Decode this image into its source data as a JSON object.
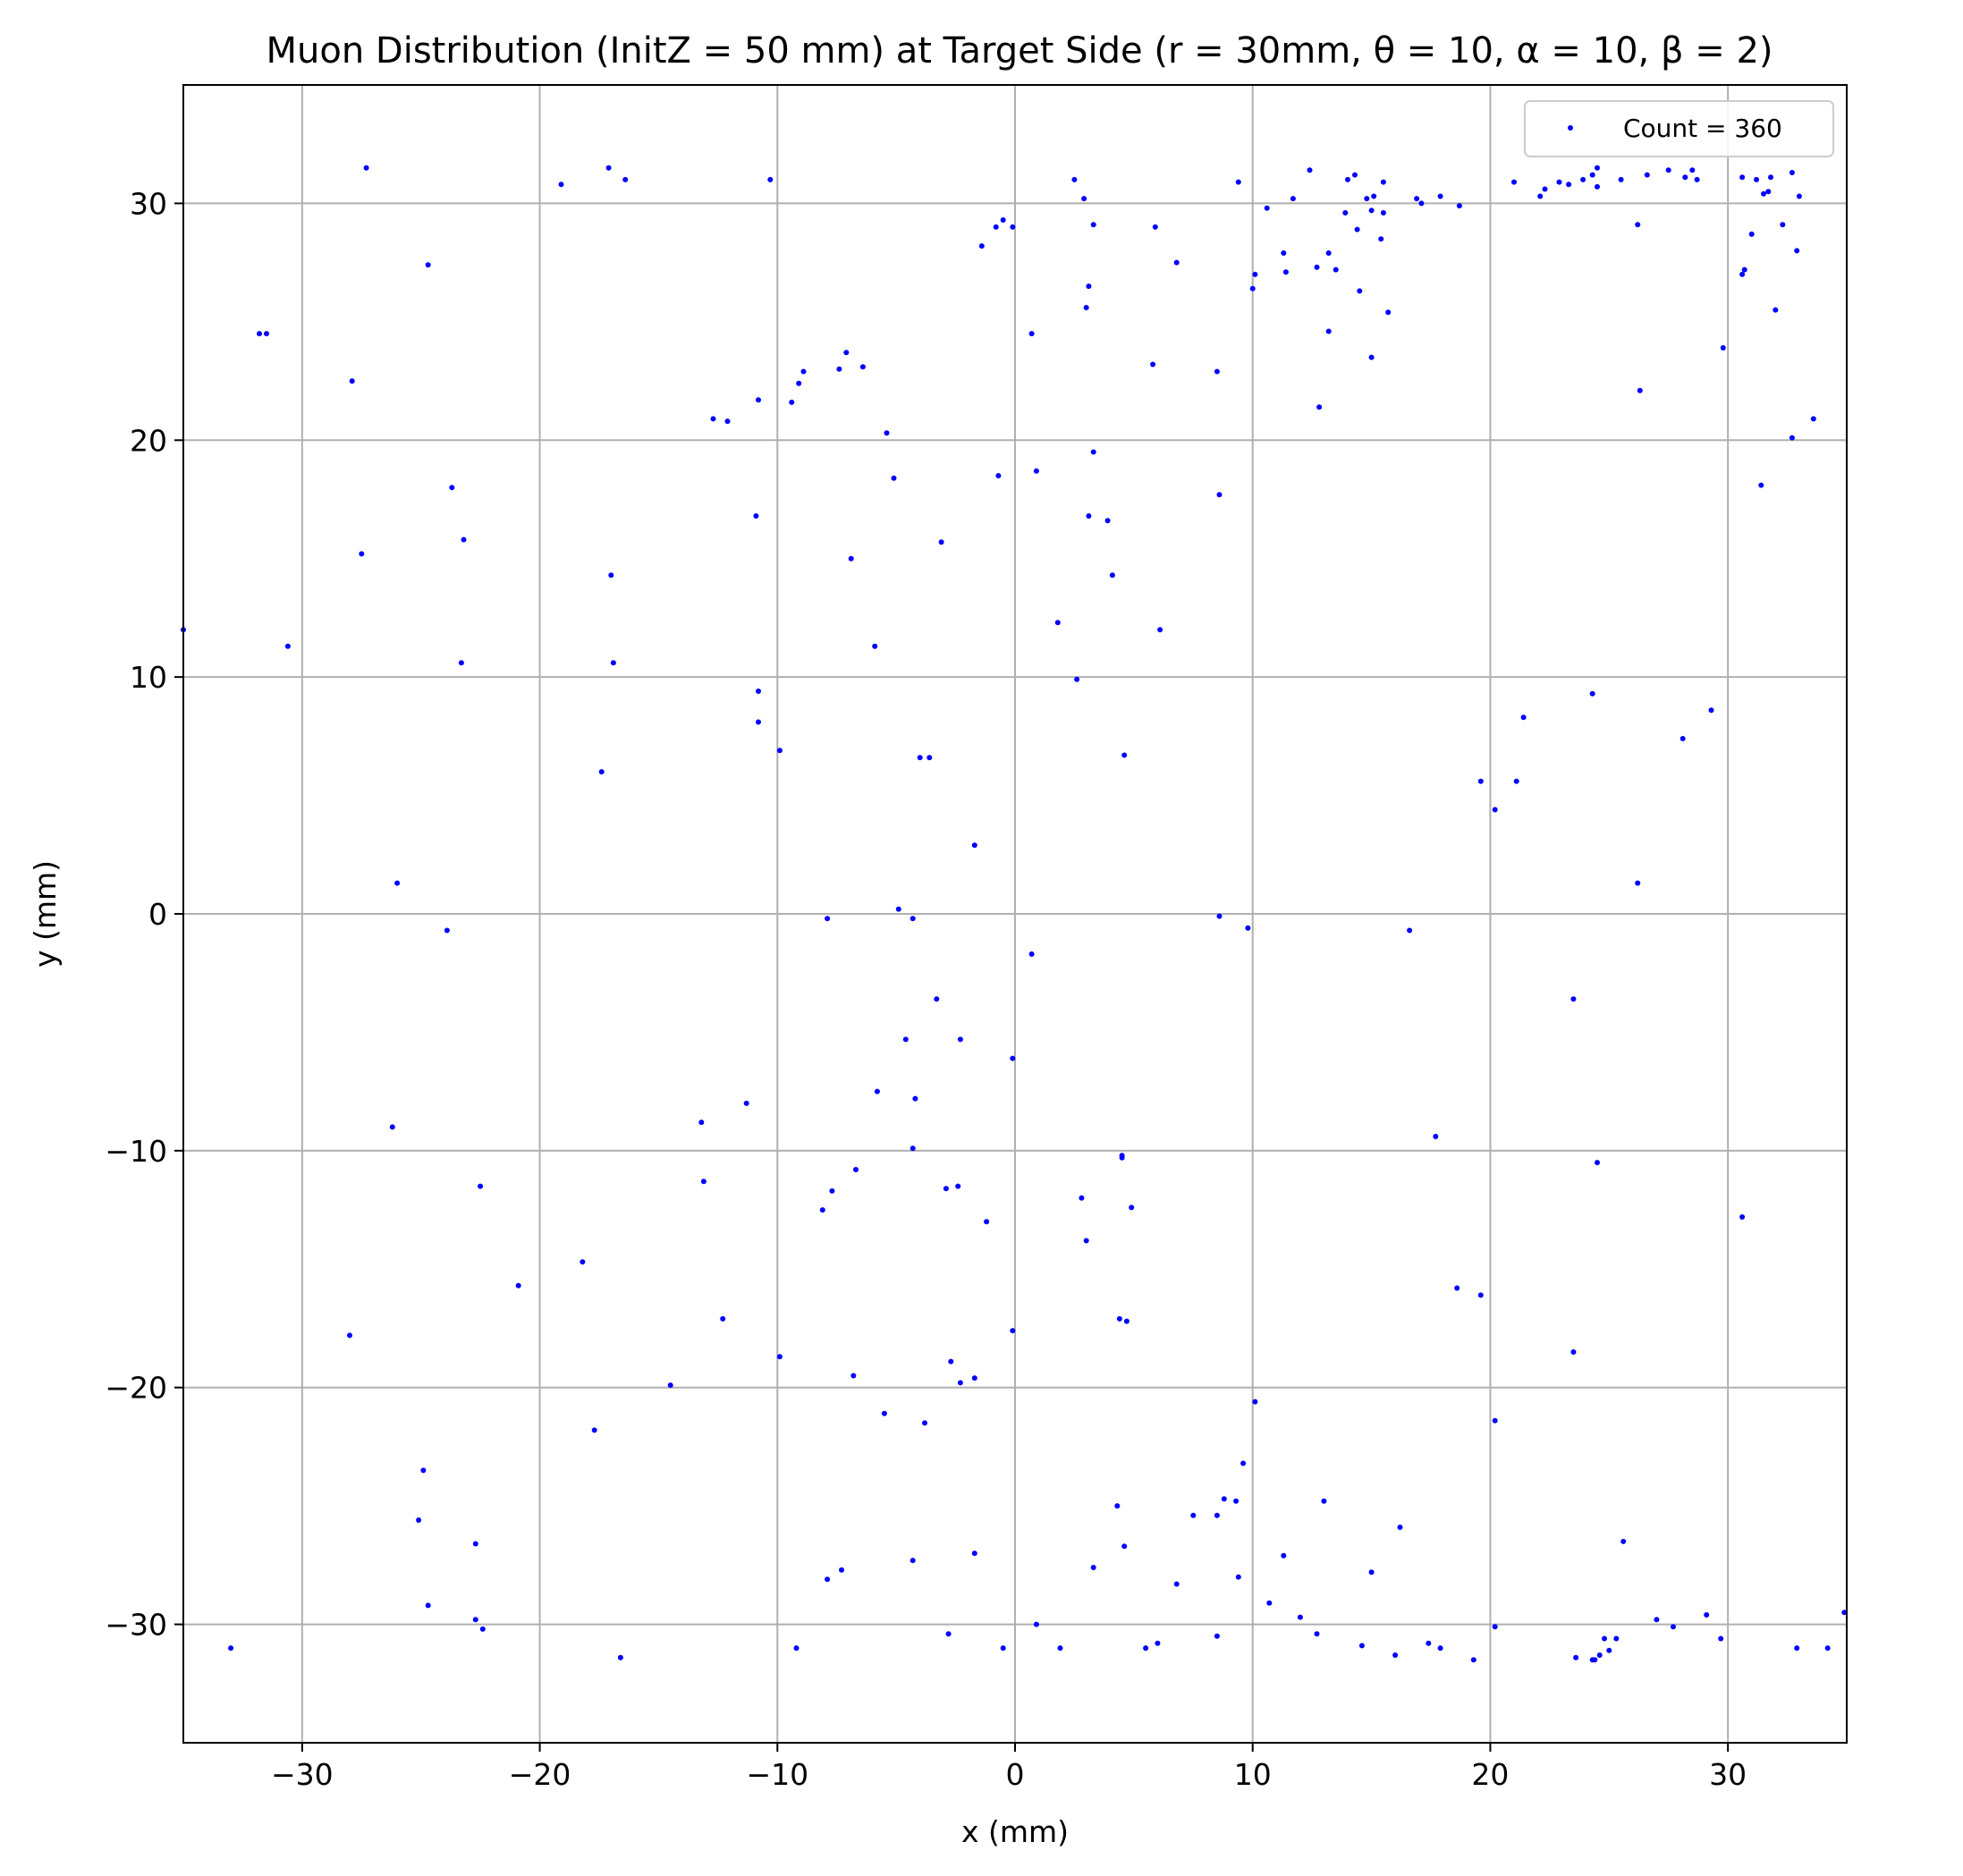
{
  "chart_data": {
    "type": "scatter",
    "title": "Muon Distribution (InitZ = 50 mm) at Target Side (r = 30mm, θ = 10, α = 10, β = 2)",
    "xlabel": "x (mm)",
    "ylabel": "y (mm)",
    "xlim": [
      -35,
      35
    ],
    "ylim": [
      -35,
      35
    ],
    "xticks": [
      -30,
      -20,
      -10,
      0,
      10,
      20,
      30
    ],
    "yticks": [
      -30,
      -20,
      -10,
      0,
      10,
      20,
      30
    ],
    "xtick_labels": [
      "−30",
      "−20",
      "−10",
      "0",
      "10",
      "20",
      "30"
    ],
    "ytick_labels": [
      "−30",
      "−20",
      "−10",
      "0",
      "10",
      "20",
      "30"
    ],
    "grid": true,
    "legend_position": "top-right",
    "series": [
      {
        "name": "Count = 360",
        "color": "#0000ff",
        "marker": "dot",
        "points": [
          [
            -35.0,
            12.0
          ],
          [
            -33.0,
            -31.0
          ],
          [
            -31.8,
            24.5
          ],
          [
            -31.5,
            24.5
          ],
          [
            -30.6,
            11.3
          ],
          [
            -27.9,
            22.5
          ],
          [
            -27.5,
            15.2
          ],
          [
            -27.3,
            31.5
          ],
          [
            -28.0,
            -17.8
          ],
          [
            -26.0,
            1.3
          ],
          [
            -26.2,
            -9.0
          ],
          [
            -24.7,
            27.4
          ],
          [
            -24.9,
            -23.5
          ],
          [
            -25.1,
            -25.6
          ],
          [
            -24.7,
            -29.2
          ],
          [
            -23.7,
            18.0
          ],
          [
            -23.2,
            15.8
          ],
          [
            -23.3,
            10.6
          ],
          [
            -23.9,
            -0.7
          ],
          [
            -22.5,
            -11.5
          ],
          [
            -22.7,
            -26.6
          ],
          [
            -22.7,
            -29.8
          ],
          [
            -22.4,
            -30.2
          ],
          [
            -20.9,
            -15.7
          ],
          [
            -19.1,
            30.8
          ],
          [
            -18.2,
            -14.7
          ],
          [
            -17.4,
            6.0
          ],
          [
            -17.1,
            31.5
          ],
          [
            -17.0,
            14.3
          ],
          [
            -16.9,
            10.6
          ],
          [
            -17.7,
            -21.8
          ],
          [
            -16.6,
            -31.4
          ],
          [
            -16.4,
            31.0
          ],
          [
            -14.5,
            -19.9
          ],
          [
            -13.1,
            -11.3
          ],
          [
            -13.2,
            -8.8
          ],
          [
            -12.7,
            20.9
          ],
          [
            -12.1,
            20.8
          ],
          [
            -12.3,
            -17.1
          ],
          [
            -11.3,
            -8.0
          ],
          [
            -10.9,
            16.8
          ],
          [
            -10.8,
            21.7
          ],
          [
            -10.8,
            9.4
          ],
          [
            -10.8,
            8.1
          ],
          [
            -10.3,
            31.0
          ],
          [
            -9.9,
            6.9
          ],
          [
            -9.9,
            -18.7
          ],
          [
            -9.4,
            21.6
          ],
          [
            -9.1,
            22.4
          ],
          [
            -8.9,
            22.9
          ],
          [
            -9.2,
            -31.0
          ],
          [
            -7.9,
            -0.2
          ],
          [
            -8.1,
            -12.5
          ],
          [
            -7.7,
            -11.7
          ],
          [
            -7.9,
            -28.1
          ],
          [
            -7.4,
            23.0
          ],
          [
            -7.1,
            23.7
          ],
          [
            -6.9,
            15.0
          ],
          [
            -6.4,
            23.1
          ],
          [
            -6.7,
            -10.8
          ],
          [
            -6.8,
            -19.5
          ],
          [
            -7.3,
            -27.7
          ],
          [
            -5.9,
            11.3
          ],
          [
            -5.8,
            -7.5
          ],
          [
            -5.4,
            20.3
          ],
          [
            -5.1,
            18.4
          ],
          [
            -5.5,
            -21.1
          ],
          [
            -4.9,
            0.2
          ],
          [
            -4.6,
            -5.3
          ],
          [
            -4.3,
            -0.2
          ],
          [
            -4.2,
            -7.8
          ],
          [
            -4.3,
            -9.9
          ],
          [
            -4.3,
            -27.3
          ],
          [
            -4.0,
            6.6
          ],
          [
            -3.8,
            -21.5
          ],
          [
            -3.6,
            6.6
          ],
          [
            -3.3,
            -3.6
          ],
          [
            -3.1,
            15.7
          ],
          [
            -2.9,
            -11.6
          ],
          [
            -2.7,
            -18.9
          ],
          [
            -2.8,
            -30.4
          ],
          [
            -2.3,
            -5.3
          ],
          [
            -2.4,
            -11.5
          ],
          [
            -2.3,
            -19.8
          ],
          [
            -1.7,
            2.9
          ],
          [
            -1.7,
            -19.6
          ],
          [
            -1.7,
            -27.0
          ],
          [
            -1.4,
            28.2
          ],
          [
            -1.2,
            -13.0
          ],
          [
            -0.8,
            29.0
          ],
          [
            -0.7,
            18.5
          ],
          [
            -0.5,
            29.3
          ],
          [
            -0.5,
            -31.0
          ],
          [
            -0.1,
            29.0
          ],
          [
            -0.1,
            -6.1
          ],
          [
            -0.1,
            -17.6
          ],
          [
            0.7,
            24.5
          ],
          [
            0.9,
            18.7
          ],
          [
            0.7,
            -1.7
          ],
          [
            0.9,
            -30.0
          ],
          [
            1.8,
            12.3
          ],
          [
            1.9,
            -31.0
          ],
          [
            2.5,
            31.0
          ],
          [
            2.6,
            9.9
          ],
          [
            2.8,
            -12.0
          ],
          [
            2.9,
            30.2
          ],
          [
            3.1,
            26.5
          ],
          [
            3.0,
            25.6
          ],
          [
            3.0,
            -13.8
          ],
          [
            3.1,
            16.8
          ],
          [
            3.3,
            19.5
          ],
          [
            3.3,
            29.1
          ],
          [
            3.3,
            -27.6
          ],
          [
            3.9,
            16.6
          ],
          [
            4.1,
            14.3
          ],
          [
            4.3,
            -25.0
          ],
          [
            4.4,
            -17.1
          ],
          [
            4.5,
            -10.3
          ],
          [
            4.5,
            -10.2
          ],
          [
            4.6,
            -26.7
          ],
          [
            4.6,
            6.7
          ],
          [
            4.7,
            -17.2
          ],
          [
            4.9,
            -12.4
          ],
          [
            5.5,
            -31.0
          ],
          [
            5.9,
            29.0
          ],
          [
            5.8,
            23.2
          ],
          [
            6.1,
            12.0
          ],
          [
            6.0,
            -30.8
          ],
          [
            6.8,
            27.5
          ],
          [
            6.8,
            -28.3
          ],
          [
            7.5,
            -25.4
          ],
          [
            8.5,
            22.9
          ],
          [
            8.6,
            17.7
          ],
          [
            8.6,
            -0.1
          ],
          [
            8.5,
            -25.4
          ],
          [
            8.5,
            -30.5
          ],
          [
            8.8,
            -24.7
          ],
          [
            9.3,
            -24.8
          ],
          [
            9.4,
            30.9
          ],
          [
            9.4,
            -28.0
          ],
          [
            9.6,
            -23.2
          ],
          [
            9.8,
            -0.6
          ],
          [
            10.0,
            26.4
          ],
          [
            10.1,
            27.0
          ],
          [
            10.1,
            -20.6
          ],
          [
            10.6,
            29.8
          ],
          [
            10.7,
            -29.1
          ],
          [
            11.3,
            27.9
          ],
          [
            11.4,
            27.1
          ],
          [
            11.3,
            -27.1
          ],
          [
            11.7,
            30.2
          ],
          [
            12.0,
            -29.7
          ],
          [
            12.4,
            31.4
          ],
          [
            12.7,
            27.3
          ],
          [
            12.8,
            21.4
          ],
          [
            12.7,
            -30.4
          ],
          [
            13.0,
            -24.8
          ],
          [
            13.2,
            24.6
          ],
          [
            13.2,
            27.9
          ],
          [
            13.5,
            27.2
          ],
          [
            13.9,
            29.6
          ],
          [
            14.0,
            31.0
          ],
          [
            14.3,
            31.2
          ],
          [
            14.4,
            28.9
          ],
          [
            14.5,
            26.3
          ],
          [
            14.6,
            -30.9
          ],
          [
            14.8,
            30.2
          ],
          [
            15.0,
            23.5
          ],
          [
            15.0,
            29.7
          ],
          [
            15.1,
            30.3
          ],
          [
            15.0,
            -27.8
          ],
          [
            15.4,
            28.5
          ],
          [
            15.5,
            30.9
          ],
          [
            15.5,
            29.6
          ],
          [
            15.7,
            25.4
          ],
          [
            16.0,
            -31.3
          ],
          [
            16.2,
            -25.9
          ],
          [
            16.6,
            -0.7
          ],
          [
            16.9,
            30.2
          ],
          [
            17.1,
            30.0
          ],
          [
            17.4,
            -30.8
          ],
          [
            17.7,
            -9.4
          ],
          [
            17.9,
            30.3
          ],
          [
            17.9,
            -31.0
          ],
          [
            18.6,
            -15.8
          ],
          [
            18.7,
            29.9
          ],
          [
            19.3,
            -31.5
          ],
          [
            19.6,
            5.6
          ],
          [
            19.6,
            -16.1
          ],
          [
            20.2,
            4.4
          ],
          [
            20.2,
            -21.4
          ],
          [
            20.2,
            -30.1
          ],
          [
            21.0,
            30.9
          ],
          [
            21.1,
            5.6
          ],
          [
            21.4,
            8.3
          ],
          [
            22.1,
            30.3
          ],
          [
            22.3,
            30.6
          ],
          [
            22.9,
            30.9
          ],
          [
            23.3,
            30.8
          ],
          [
            23.5,
            -3.6
          ],
          [
            23.5,
            -18.5
          ],
          [
            23.6,
            -31.4
          ],
          [
            23.9,
            31.0
          ],
          [
            24.3,
            9.3
          ],
          [
            24.3,
            31.2
          ],
          [
            24.5,
            31.5
          ],
          [
            24.5,
            30.7
          ],
          [
            24.5,
            -10.5
          ],
          [
            24.3,
            -31.5
          ],
          [
            24.4,
            -31.5
          ],
          [
            24.6,
            -31.3
          ],
          [
            24.8,
            -30.6
          ],
          [
            25.0,
            -31.1
          ],
          [
            25.3,
            -30.6
          ],
          [
            25.5,
            31.0
          ],
          [
            25.6,
            -26.5
          ],
          [
            26.2,
            29.1
          ],
          [
            26.3,
            22.1
          ],
          [
            26.2,
            1.3
          ],
          [
            26.6,
            31.2
          ],
          [
            27.0,
            -29.8
          ],
          [
            27.5,
            31.4
          ],
          [
            27.7,
            -30.1
          ],
          [
            28.1,
            7.4
          ],
          [
            28.2,
            31.1
          ],
          [
            28.5,
            31.4
          ],
          [
            28.7,
            31.0
          ],
          [
            29.1,
            -29.6
          ],
          [
            29.3,
            8.6
          ],
          [
            29.8,
            23.9
          ],
          [
            29.7,
            -30.6
          ],
          [
            30.6,
            31.1
          ],
          [
            30.6,
            27.0
          ],
          [
            30.7,
            27.2
          ],
          [
            30.6,
            -12.8
          ],
          [
            31.0,
            28.7
          ],
          [
            31.2,
            31.0
          ],
          [
            31.4,
            18.1
          ],
          [
            31.5,
            30.4
          ],
          [
            31.8,
            31.1
          ],
          [
            31.7,
            30.5
          ],
          [
            32.0,
            25.5
          ],
          [
            32.3,
            29.1
          ],
          [
            32.7,
            20.1
          ],
          [
            32.7,
            31.3
          ],
          [
            32.9,
            28.0
          ],
          [
            33.0,
            30.3
          ],
          [
            32.9,
            -31.0
          ],
          [
            33.6,
            20.9
          ],
          [
            34.2,
            -31.0
          ],
          [
            34.9,
            -29.5
          ]
        ]
      }
    ]
  }
}
